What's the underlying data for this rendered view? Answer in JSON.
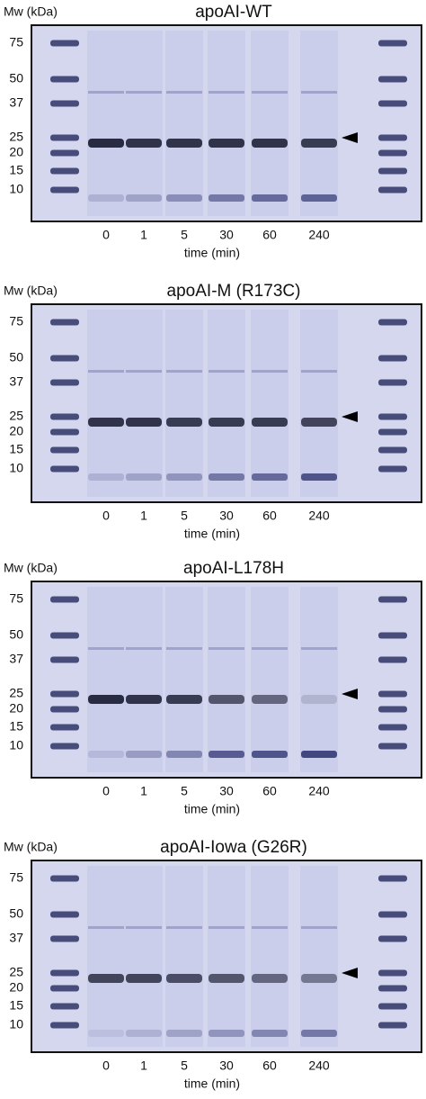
{
  "panels": [
    {
      "mw_label": "Mw (kDa)",
      "title": "apoAI-WT",
      "markers": [
        "75",
        "50",
        "37",
        "25",
        "20",
        "15",
        "10"
      ],
      "lanes": [
        "0",
        "1",
        "5",
        "30",
        "60",
        "240"
      ],
      "xlabel": "time (min)"
    },
    {
      "mw_label": "Mw (kDa)",
      "title": "apoAI-M (R173C)",
      "markers": [
        "75",
        "50",
        "37",
        "25",
        "20",
        "15",
        "10"
      ],
      "lanes": [
        "0",
        "1",
        "5",
        "30",
        "60",
        "240"
      ],
      "xlabel": "time (min)"
    },
    {
      "mw_label": "Mw (kDa)",
      "title": "apoAI-L178H",
      "markers": [
        "75",
        "50",
        "37",
        "25",
        "20",
        "15",
        "10"
      ],
      "lanes": [
        "0",
        "1",
        "5",
        "30",
        "60",
        "240"
      ],
      "xlabel": "time (min)"
    },
    {
      "mw_label": "Mw (kDa)",
      "title": "apoAI-Iowa (G26R)",
      "markers": [
        "75",
        "50",
        "37",
        "25",
        "20",
        "15",
        "10"
      ],
      "lanes": [
        "0",
        "1",
        "5",
        "30",
        "60",
        "240"
      ],
      "xlabel": "time (min)"
    }
  ]
}
